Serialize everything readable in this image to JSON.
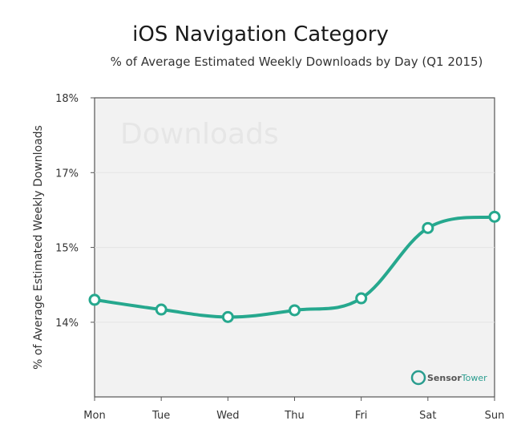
{
  "header": {
    "title": "iOS Navigation Category",
    "subtitle": "% of Average Estimated Weekly Downloads by Day (Q1 2015)"
  },
  "watermark": "Downloads",
  "branding": {
    "sensor": "Sensor",
    "tower": "Tower"
  },
  "colors": {
    "line": "#26a88e",
    "plot_bg": "#f2f2f2",
    "axis": "#555555",
    "grid": "#e4e4e4",
    "brand_icon": "#2a9d8f"
  },
  "chart_data": {
    "type": "line",
    "title": "iOS Navigation Category",
    "subtitle": "% of Average Estimated Weekly Downloads by Day (Q1 2015)",
    "xlabel": "",
    "ylabel": "% of  Average Estimated Weekly Downloads",
    "categories": [
      "Mon",
      "Tue",
      "Wed",
      "Thu",
      "Fri",
      "Sat",
      "Sun"
    ],
    "y_ticks": [
      {
        "label": "18%",
        "rank": 4
      },
      {
        "label": "17%",
        "rank": 3
      },
      {
        "label": "15%",
        "rank": 2
      },
      {
        "label": "14%",
        "rank": 1
      }
    ],
    "y_axis_note": "tick labels are evenly spaced at 18%, 17%, 15%, 14% as printed",
    "series": [
      {
        "values_in_tick_ranks": [
          1.3,
          1.17,
          1.07,
          1.16,
          1.32,
          2.26,
          2.41
        ]
      }
    ],
    "grid": true,
    "legend": "none",
    "smooth": true
  }
}
